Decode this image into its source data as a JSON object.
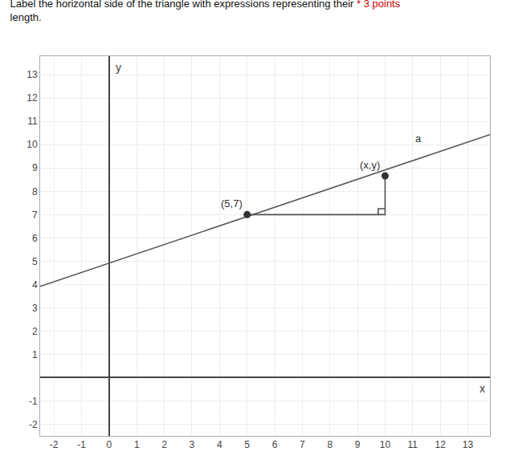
{
  "chart_data": {
    "type": "line",
    "title": "Label the horizontal side of the triangle with expressions representing their",
    "subtitle": "length.",
    "xlabel": "x",
    "ylabel": "y",
    "xlim": [
      -2.5,
      13.8
    ],
    "ylim": [
      -2.5,
      13.8
    ],
    "xticks": [
      -2,
      -1,
      0,
      1,
      2,
      3,
      4,
      5,
      6,
      7,
      8,
      9,
      10,
      11,
      12,
      13
    ],
    "yticks": [
      -2,
      -1,
      {
        "value": 0,
        "label": null
      },
      1,
      2,
      3,
      4,
      5,
      6,
      7,
      8,
      9,
      10,
      11,
      12,
      13
    ],
    "grid": true,
    "series": [
      {
        "type": "line",
        "color": "#555555",
        "x": [
          -2.5,
          13.8
        ],
        "y": [
          3.917,
          10.433
        ]
      },
      {
        "type": "line",
        "color": "#505050",
        "x": [
          5,
          10,
          10
        ],
        "y": [
          7,
          7,
          8.667
        ]
      },
      {
        "type": "line",
        "color": "#505050",
        "x": [
          9.75,
          9.75,
          10
        ],
        "y": [
          7,
          7.25,
          7.25
        ]
      },
      {
        "type": "scatter",
        "color": "#333333",
        "x": [
          5,
          10
        ],
        "y": [
          7,
          8.667
        ]
      }
    ],
    "annotations": [
      {
        "text": "* 3 points",
        "color": "#cc0000"
      },
      {
        "text": "(5,7)",
        "x": 5,
        "y": 7
      },
      {
        "text": "(x,y)",
        "x": 10,
        "y": 8.667
      },
      {
        "text": "a",
        "x": 11.5,
        "y": 9.8
      }
    ]
  }
}
